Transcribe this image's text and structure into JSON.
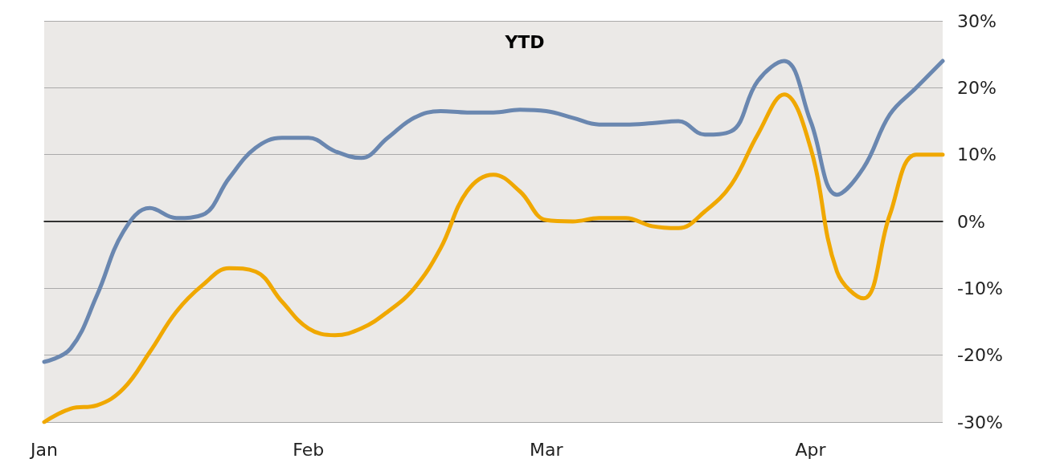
{
  "chart_data": {
    "type": "line",
    "title": "YTD",
    "categories": [
      "Jan",
      null,
      null,
      null,
      null,
      null,
      null,
      null,
      null,
      null,
      "Feb",
      null,
      null,
      null,
      null,
      null,
      null,
      null,
      null,
      "Mar",
      null,
      null,
      null,
      null,
      null,
      null,
      null,
      null,
      null,
      "Apr",
      null,
      null,
      null,
      null,
      null
    ],
    "series": [
      {
        "color": "#6a87b0",
        "values": [
          -21,
          -19,
          -11,
          -1.5,
          2,
          0.5,
          1,
          6.5,
          11,
          12.5,
          12.5,
          10.5,
          9.5,
          12.5,
          15.5,
          16.5,
          16.3,
          16.3,
          16.7,
          16.5,
          15.5,
          14.5,
          14.5,
          14.7,
          15,
          13,
          13.5,
          21,
          24,
          15,
          4,
          8,
          16,
          20,
          24
        ]
      },
      {
        "color": "#f0a800",
        "values": [
          -30,
          -28,
          -27.5,
          -25,
          -19.5,
          -13.5,
          -9.5,
          -7,
          -7.5,
          -12,
          -16,
          -17,
          -16,
          -13.5,
          -10,
          -4,
          4.5,
          7,
          4.5,
          0.2,
          0,
          0.5,
          0.5,
          -0.7,
          -1,
          1.5,
          5.5,
          13,
          19,
          11,
          -7.5,
          -11.5,
          1,
          10,
          10
        ]
      }
    ],
    "ylim": [
      -30,
      30
    ],
    "yticks": [
      {
        "value": -30,
        "label": "-30%"
      },
      {
        "value": -20,
        "label": "-20%"
      },
      {
        "value": -10,
        "label": "-10%"
      },
      {
        "value": 0,
        "label": "0%"
      },
      {
        "value": 10,
        "label": "10%"
      },
      {
        "value": 20,
        "label": "20%"
      },
      {
        "value": 30,
        "label": "30%"
      }
    ],
    "grid": "y",
    "marker": "none",
    "line_style": "solid"
  }
}
